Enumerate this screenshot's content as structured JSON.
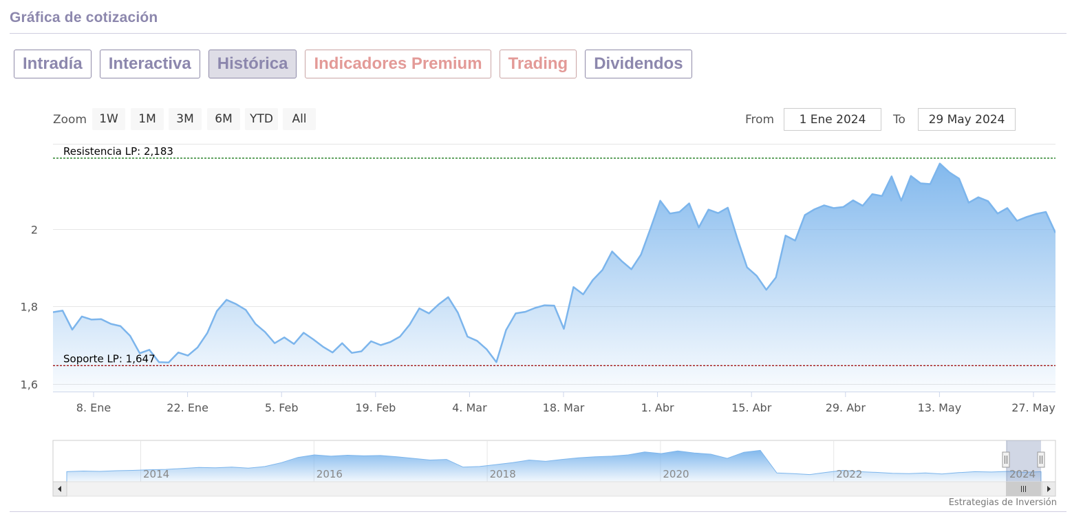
{
  "section_title": "Gráfica de cotización",
  "tabs": [
    {
      "label": "Intradía",
      "state": "normal"
    },
    {
      "label": "Interactiva",
      "state": "normal"
    },
    {
      "label": "Histórica",
      "state": "active"
    },
    {
      "label": "Indicadores Premium",
      "state": "premium"
    },
    {
      "label": "Trading",
      "state": "premium"
    },
    {
      "label": "Dividendos",
      "state": "normal"
    }
  ],
  "zoom": {
    "label": "Zoom",
    "buttons": [
      "1W",
      "1M",
      "3M",
      "6M",
      "YTD",
      "All"
    ],
    "active": "YTD"
  },
  "range": {
    "from_label": "From",
    "from_value": "1 Ene 2024",
    "to_label": "To",
    "to_value": "29 May 2024"
  },
  "colors": {
    "series": "#7cb5ec",
    "resistance": "#1a7a1a",
    "support": "#a01515",
    "grid": "#e6e6e6"
  },
  "chart_data": {
    "type": "area",
    "title": "",
    "xlabel": "",
    "ylabel": "",
    "ylim": [
      1.58,
      2.22
    ],
    "y_ticks": [
      1.6,
      1.8,
      2.0
    ],
    "y_tick_labels": [
      "1,6",
      "1,8",
      "2"
    ],
    "x_tick_labels": [
      "8. Ene",
      "22. Ene",
      "5. Feb",
      "19. Feb",
      "4. Mar",
      "18. Mar",
      "1. Abr",
      "15. Abr",
      "29. Abr",
      "13. May",
      "27. May"
    ],
    "grid": true,
    "legend": "none",
    "series": [
      {
        "values": [
          1.785,
          1.789,
          1.74,
          1.774,
          1.766,
          1.767,
          1.755,
          1.749,
          1.724,
          1.679,
          1.688,
          1.656,
          1.655,
          1.681,
          1.673,
          1.694,
          1.731,
          1.788,
          1.817,
          1.806,
          1.791,
          1.755,
          1.734,
          1.705,
          1.72,
          1.703,
          1.732,
          1.715,
          1.696,
          1.681,
          1.705,
          1.68,
          1.684,
          1.71,
          1.7,
          1.708,
          1.722,
          1.753,
          1.795,
          1.782,
          1.805,
          1.824,
          1.784,
          1.722,
          1.711,
          1.689,
          1.656,
          1.739,
          1.782,
          1.786,
          1.796,
          1.803,
          1.802,
          1.742,
          1.85,
          1.831,
          1.868,
          1.894,
          1.942,
          1.917,
          1.896,
          1.934,
          2.002,
          2.073,
          2.04,
          2.044,
          2.066,
          2.004,
          2.05,
          2.041,
          2.055,
          1.975,
          1.901,
          1.879,
          1.843,
          1.875,
          1.983,
          1.97,
          2.036,
          2.051,
          2.061,
          2.054,
          2.057,
          2.074,
          2.06,
          2.09,
          2.085,
          2.136,
          2.073,
          2.137,
          2.118,
          2.116,
          2.169,
          2.146,
          2.13,
          2.068,
          2.082,
          2.072,
          2.04,
          2.054,
          2.021,
          2.031,
          2.039,
          2.044,
          1.99
        ]
      }
    ],
    "plot_lines": [
      {
        "label": "Resistencia LP: 2,183",
        "value": 2.183
      },
      {
        "label": "Soporte LP: 1,647",
        "value": 1.647
      }
    ],
    "navigator": {
      "year_labels": [
        "2014",
        "2016",
        "2018",
        "2020",
        "2022",
        "2024"
      ],
      "values": [
        0.14,
        0.16,
        0.15,
        0.17,
        0.18,
        0.2,
        0.21,
        0.24,
        0.27,
        0.26,
        0.28,
        0.25,
        0.3,
        0.42,
        0.58,
        0.66,
        0.62,
        0.65,
        0.63,
        0.64,
        0.6,
        0.55,
        0.5,
        0.52,
        0.28,
        0.3,
        0.36,
        0.42,
        0.5,
        0.46,
        0.52,
        0.57,
        0.6,
        0.62,
        0.66,
        0.75,
        0.7,
        0.78,
        0.72,
        0.68,
        0.55,
        0.74,
        0.8,
        0.1,
        0.08,
        0.05,
        0.12,
        0.18,
        0.14,
        0.12,
        0.09,
        0.08,
        0.1,
        0.07,
        0.11,
        0.14,
        0.13,
        0.15,
        0.12,
        0.14
      ]
    }
  },
  "credits": "Estrategias de Inversión"
}
